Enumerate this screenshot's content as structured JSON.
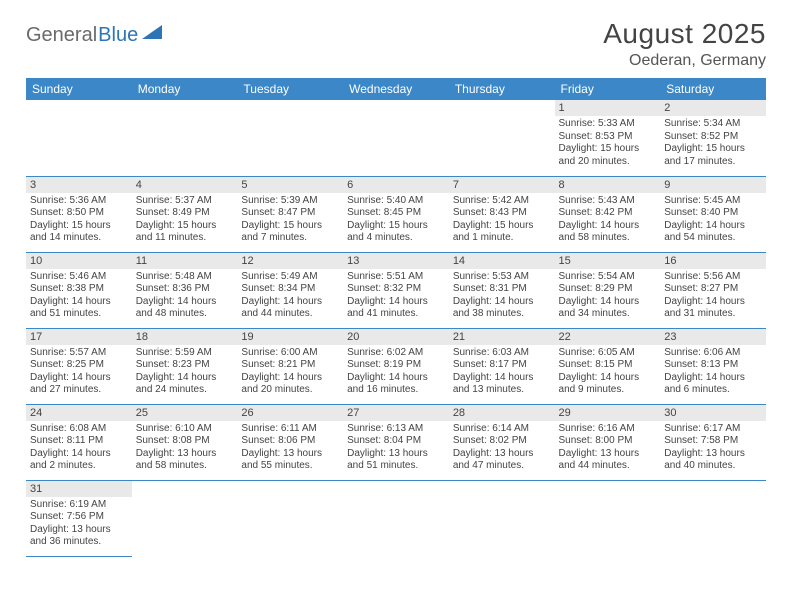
{
  "logo": {
    "text1": "General",
    "text2": "Blue"
  },
  "title": "August 2025",
  "location": "Oederan, Germany",
  "colors": {
    "header_bg": "#3b87c8",
    "header_text": "#ffffff",
    "daynum_bg": "#e9e9e9",
    "text": "#444444",
    "row_divider": "#3b87c8"
  },
  "weekdays": [
    "Sunday",
    "Monday",
    "Tuesday",
    "Wednesday",
    "Thursday",
    "Friday",
    "Saturday"
  ],
  "weeks": [
    [
      null,
      null,
      null,
      null,
      null,
      {
        "n": "1",
        "sr": "Sunrise: 5:33 AM",
        "ss": "Sunset: 8:53 PM",
        "dl": "Daylight: 15 hours and 20 minutes."
      },
      {
        "n": "2",
        "sr": "Sunrise: 5:34 AM",
        "ss": "Sunset: 8:52 PM",
        "dl": "Daylight: 15 hours and 17 minutes."
      }
    ],
    [
      {
        "n": "3",
        "sr": "Sunrise: 5:36 AM",
        "ss": "Sunset: 8:50 PM",
        "dl": "Daylight: 15 hours and 14 minutes."
      },
      {
        "n": "4",
        "sr": "Sunrise: 5:37 AM",
        "ss": "Sunset: 8:49 PM",
        "dl": "Daylight: 15 hours and 11 minutes."
      },
      {
        "n": "5",
        "sr": "Sunrise: 5:39 AM",
        "ss": "Sunset: 8:47 PM",
        "dl": "Daylight: 15 hours and 7 minutes."
      },
      {
        "n": "6",
        "sr": "Sunrise: 5:40 AM",
        "ss": "Sunset: 8:45 PM",
        "dl": "Daylight: 15 hours and 4 minutes."
      },
      {
        "n": "7",
        "sr": "Sunrise: 5:42 AM",
        "ss": "Sunset: 8:43 PM",
        "dl": "Daylight: 15 hours and 1 minute."
      },
      {
        "n": "8",
        "sr": "Sunrise: 5:43 AM",
        "ss": "Sunset: 8:42 PM",
        "dl": "Daylight: 14 hours and 58 minutes."
      },
      {
        "n": "9",
        "sr": "Sunrise: 5:45 AM",
        "ss": "Sunset: 8:40 PM",
        "dl": "Daylight: 14 hours and 54 minutes."
      }
    ],
    [
      {
        "n": "10",
        "sr": "Sunrise: 5:46 AM",
        "ss": "Sunset: 8:38 PM",
        "dl": "Daylight: 14 hours and 51 minutes."
      },
      {
        "n": "11",
        "sr": "Sunrise: 5:48 AM",
        "ss": "Sunset: 8:36 PM",
        "dl": "Daylight: 14 hours and 48 minutes."
      },
      {
        "n": "12",
        "sr": "Sunrise: 5:49 AM",
        "ss": "Sunset: 8:34 PM",
        "dl": "Daylight: 14 hours and 44 minutes."
      },
      {
        "n": "13",
        "sr": "Sunrise: 5:51 AM",
        "ss": "Sunset: 8:32 PM",
        "dl": "Daylight: 14 hours and 41 minutes."
      },
      {
        "n": "14",
        "sr": "Sunrise: 5:53 AM",
        "ss": "Sunset: 8:31 PM",
        "dl": "Daylight: 14 hours and 38 minutes."
      },
      {
        "n": "15",
        "sr": "Sunrise: 5:54 AM",
        "ss": "Sunset: 8:29 PM",
        "dl": "Daylight: 14 hours and 34 minutes."
      },
      {
        "n": "16",
        "sr": "Sunrise: 5:56 AM",
        "ss": "Sunset: 8:27 PM",
        "dl": "Daylight: 14 hours and 31 minutes."
      }
    ],
    [
      {
        "n": "17",
        "sr": "Sunrise: 5:57 AM",
        "ss": "Sunset: 8:25 PM",
        "dl": "Daylight: 14 hours and 27 minutes."
      },
      {
        "n": "18",
        "sr": "Sunrise: 5:59 AM",
        "ss": "Sunset: 8:23 PM",
        "dl": "Daylight: 14 hours and 24 minutes."
      },
      {
        "n": "19",
        "sr": "Sunrise: 6:00 AM",
        "ss": "Sunset: 8:21 PM",
        "dl": "Daylight: 14 hours and 20 minutes."
      },
      {
        "n": "20",
        "sr": "Sunrise: 6:02 AM",
        "ss": "Sunset: 8:19 PM",
        "dl": "Daylight: 14 hours and 16 minutes."
      },
      {
        "n": "21",
        "sr": "Sunrise: 6:03 AM",
        "ss": "Sunset: 8:17 PM",
        "dl": "Daylight: 14 hours and 13 minutes."
      },
      {
        "n": "22",
        "sr": "Sunrise: 6:05 AM",
        "ss": "Sunset: 8:15 PM",
        "dl": "Daylight: 14 hours and 9 minutes."
      },
      {
        "n": "23",
        "sr": "Sunrise: 6:06 AM",
        "ss": "Sunset: 8:13 PM",
        "dl": "Daylight: 14 hours and 6 minutes."
      }
    ],
    [
      {
        "n": "24",
        "sr": "Sunrise: 6:08 AM",
        "ss": "Sunset: 8:11 PM",
        "dl": "Daylight: 14 hours and 2 minutes."
      },
      {
        "n": "25",
        "sr": "Sunrise: 6:10 AM",
        "ss": "Sunset: 8:08 PM",
        "dl": "Daylight: 13 hours and 58 minutes."
      },
      {
        "n": "26",
        "sr": "Sunrise: 6:11 AM",
        "ss": "Sunset: 8:06 PM",
        "dl": "Daylight: 13 hours and 55 minutes."
      },
      {
        "n": "27",
        "sr": "Sunrise: 6:13 AM",
        "ss": "Sunset: 8:04 PM",
        "dl": "Daylight: 13 hours and 51 minutes."
      },
      {
        "n": "28",
        "sr": "Sunrise: 6:14 AM",
        "ss": "Sunset: 8:02 PM",
        "dl": "Daylight: 13 hours and 47 minutes."
      },
      {
        "n": "29",
        "sr": "Sunrise: 6:16 AM",
        "ss": "Sunset: 8:00 PM",
        "dl": "Daylight: 13 hours and 44 minutes."
      },
      {
        "n": "30",
        "sr": "Sunrise: 6:17 AM",
        "ss": "Sunset: 7:58 PM",
        "dl": "Daylight: 13 hours and 40 minutes."
      }
    ],
    [
      {
        "n": "31",
        "sr": "Sunrise: 6:19 AM",
        "ss": "Sunset: 7:56 PM",
        "dl": "Daylight: 13 hours and 36 minutes."
      },
      null,
      null,
      null,
      null,
      null,
      null
    ]
  ]
}
